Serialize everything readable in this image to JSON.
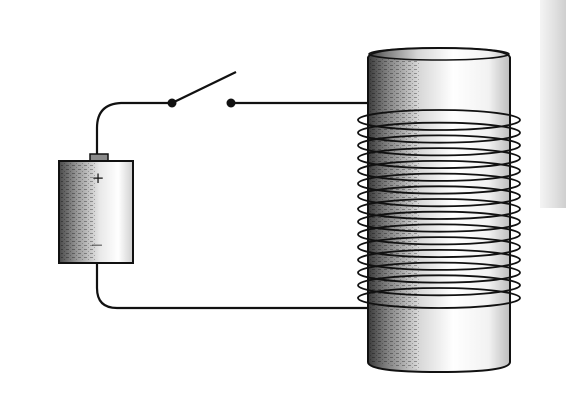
{
  "battery": {
    "positive_symbol": "+",
    "negative_symbol": "—"
  },
  "components": {
    "battery_icon": "battery-icon",
    "switch_icon": "open-switch-icon",
    "core_icon": "iron-core-icon",
    "coil_icon": "wire-coil-icon",
    "wire_icon": "circuit-wire-icon"
  },
  "coil": {
    "turns": 15
  },
  "switch": {
    "state": "open"
  },
  "colors": {
    "line": "#111111",
    "core_shade": "#8a8a8a",
    "background": "#ffffff"
  }
}
